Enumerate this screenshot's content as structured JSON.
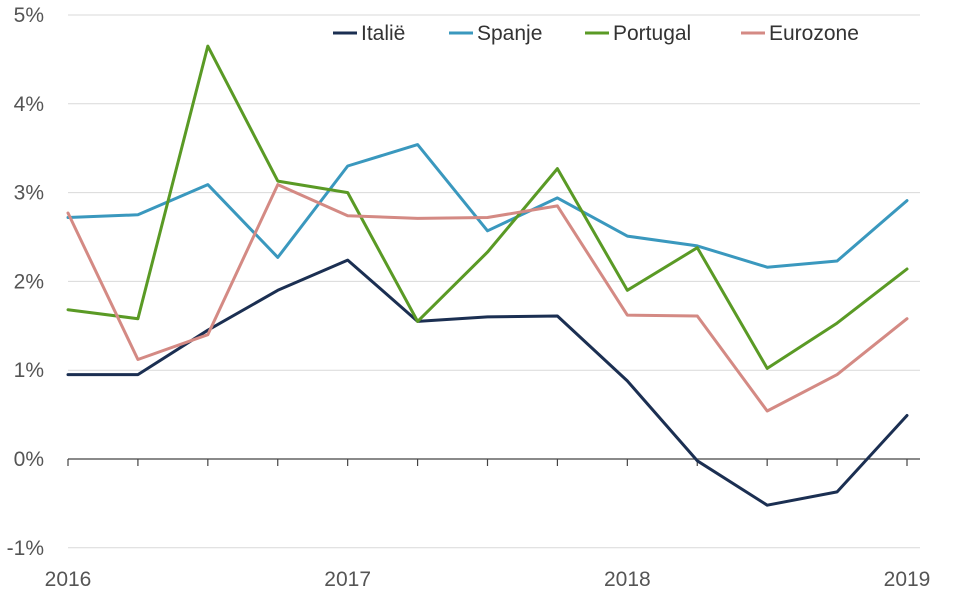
{
  "chart_data": {
    "type": "line",
    "title": "",
    "xlabel": "",
    "ylabel": "",
    "x_ticks": [
      "2016",
      "2017",
      "2018",
      "2019"
    ],
    "y_ticks": [
      "5%",
      "4%",
      "3%",
      "2%",
      "1%",
      "0%",
      "-1%"
    ],
    "y_tick_values": [
      5,
      4,
      3,
      2,
      1,
      0,
      -1
    ],
    "ylim": [
      -1,
      5
    ],
    "x_quarters": 13,
    "grid": true,
    "legend_position": "top",
    "series": [
      {
        "name": "Italië",
        "color": "#1b2f52",
        "values": [
          0.95,
          0.95,
          1.45,
          1.9,
          2.24,
          1.55,
          1.6,
          1.61,
          0.88,
          -0.02,
          -0.52,
          -0.37,
          0.49
        ]
      },
      {
        "name": "Spanje",
        "color": "#3a98be",
        "values": [
          2.72,
          2.75,
          3.09,
          2.27,
          3.3,
          3.54,
          2.57,
          2.94,
          2.51,
          2.4,
          2.16,
          2.23,
          2.91
        ]
      },
      {
        "name": "Portugal",
        "color": "#5a9a25",
        "values": [
          1.68,
          1.58,
          4.65,
          3.13,
          3.0,
          1.55,
          2.33,
          3.27,
          1.9,
          2.38,
          1.02,
          1.53,
          2.14
        ]
      },
      {
        "name": "Eurozone",
        "color": "#d48a84",
        "values": [
          2.77,
          1.12,
          1.4,
          3.09,
          2.74,
          2.71,
          2.72,
          2.85,
          1.62,
          1.61,
          0.54,
          0.95,
          1.58
        ]
      }
    ]
  }
}
